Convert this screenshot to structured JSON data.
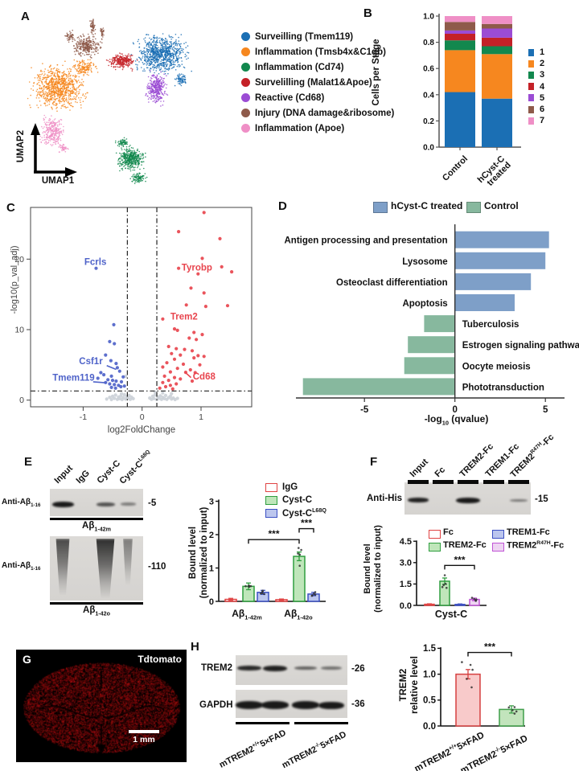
{
  "panelA": {
    "label": "A",
    "x_axis_label": "UMAP1",
    "y_axis_label": "UMAP2",
    "legend": [
      {
        "name": "Surveilling (Tmem119)",
        "color": "#1b6fb4"
      },
      {
        "name": "Inflammation (Tmsb4x&C1qb)",
        "color": "#f6871f"
      },
      {
        "name": "Inflammation (Cd74)",
        "color": "#12884e"
      },
      {
        "name": "Survelilling (Malat1&Apoe)",
        "color": "#c42127"
      },
      {
        "name": "Reactive (Cd68)",
        "color": "#9b4cd4"
      },
      {
        "name": "Injury (DNA damage&ribosome)",
        "color": "#8e5a4a"
      },
      {
        "name": "Inflammation (Apoe)",
        "color": "#ef8fc6"
      }
    ],
    "clusters": [
      {
        "name": "surveilling-tmem119",
        "color": "#1b6fb4",
        "blobs": [
          [
            175,
            52,
            40,
            30,
            850
          ],
          [
            200,
            84,
            9,
            11,
            70
          ]
        ]
      },
      {
        "name": "inflammation-tmsb4x-c1qb",
        "color": "#f6871f",
        "blobs": [
          [
            48,
            94,
            40,
            36,
            850
          ],
          [
            80,
            68,
            18,
            12,
            140
          ]
        ]
      },
      {
        "name": "inflammation-cd74",
        "color": "#12884e",
        "blobs": [
          [
            138,
            182,
            21,
            18,
            400
          ],
          [
            147,
            206,
            12,
            9,
            90
          ],
          [
            127,
            162,
            9,
            7,
            60
          ]
        ]
      },
      {
        "name": "surveilling-malat1-apoe",
        "color": "#c42127",
        "blobs": [
          [
            127,
            61,
            21,
            13,
            260
          ]
        ]
      },
      {
        "name": "reactive-cd68",
        "color": "#9b4cd4",
        "blobs": [
          [
            170,
            94,
            17,
            24,
            360
          ]
        ]
      },
      {
        "name": "injury-dna-damage",
        "color": "#8e5a4a",
        "blobs": [
          [
            82,
            42,
            24,
            17,
            300
          ],
          [
            90,
            17,
            4,
            13,
            60
          ],
          [
            102,
            26,
            3,
            9,
            35
          ],
          [
            62,
            30,
            10,
            8,
            50
          ]
        ]
      },
      {
        "name": "inflammation-apoe",
        "color": "#ef8fc6",
        "blobs": [
          [
            40,
            148,
            19,
            23,
            280
          ],
          [
            54,
            170,
            8,
            8,
            40
          ]
        ]
      }
    ]
  },
  "panelB": {
    "label": "B",
    "chart_data": {
      "type": "stacked-bar",
      "ylabel": "Cells per Stage",
      "ytick_values": [
        0,
        0.2,
        0.4,
        0.6,
        0.8,
        1.0
      ],
      "ytick_labels": [
        "0.0",
        "0.2",
        "0.4",
        "0.6",
        "0.8",
        "1.0"
      ],
      "categories": [
        "Control",
        "hCyst-C treated"
      ],
      "series": [
        {
          "name": "1",
          "color": "#1b6fb4",
          "values": [
            0.42,
            0.37
          ]
        },
        {
          "name": "2",
          "color": "#f6871f",
          "values": [
            0.32,
            0.34
          ]
        },
        {
          "name": "3",
          "color": "#12884e",
          "values": [
            0.075,
            0.06
          ]
        },
        {
          "name": "4",
          "color": "#c42127",
          "values": [
            0.05,
            0.065
          ]
        },
        {
          "name": "5",
          "color": "#9b4cd4",
          "values": [
            0.025,
            0.07
          ]
        },
        {
          "name": "6",
          "color": "#8e5a4a",
          "values": [
            0.065,
            0.035
          ]
        },
        {
          "name": "7",
          "color": "#ef8fc6",
          "values": [
            0.045,
            0.06
          ]
        }
      ]
    }
  },
  "panelC": {
    "label": "C",
    "chart_data": {
      "type": "scatter",
      "subtype": "volcano",
      "xlabel": "log2FoldChange",
      "ylabel": "-log10(p_val_adj)",
      "xtick_values": [
        -1,
        0,
        1
      ],
      "xtick_labels": [
        "-1",
        "0",
        "1"
      ],
      "ytick_values": [
        0,
        10,
        20
      ],
      "ytick_labels": [
        "0",
        "10",
        "20"
      ],
      "thresholds": {
        "x": [
          -0.25,
          0.25
        ],
        "y": 1.3
      },
      "colors": {
        "up": "#e8454e",
        "down": "#4f63c9",
        "ns": "#ccd1d8"
      },
      "up_points": [
        [
          1.05,
          26.6
        ],
        [
          0.62,
          23.9
        ],
        [
          1.32,
          22.9
        ],
        [
          1.02,
          20.1
        ],
        [
          0.62,
          18.7
        ],
        [
          1.35,
          18.9
        ],
        [
          1.52,
          18.2
        ],
        [
          0.95,
          17.9
        ],
        [
          0.83,
          15.9
        ],
        [
          1.05,
          15.2
        ],
        [
          0.75,
          13.5
        ],
        [
          1.08,
          13.3
        ],
        [
          1.45,
          13.4
        ],
        [
          0.35,
          11.5
        ],
        [
          0.55,
          10.1
        ],
        [
          0.6,
          9.9
        ],
        [
          0.88,
          9.6
        ],
        [
          1.02,
          9.3
        ],
        [
          0.8,
          8.8
        ],
        [
          0.92,
          8.6
        ],
        [
          0.45,
          7.6
        ],
        [
          0.58,
          7.3
        ],
        [
          0.72,
          7.2
        ],
        [
          0.85,
          7.0
        ],
        [
          0.5,
          6.6
        ],
        [
          0.65,
          6.4
        ],
        [
          0.95,
          6.3
        ],
        [
          1.05,
          6.2
        ],
        [
          0.88,
          6.0
        ],
        [
          0.55,
          5.8
        ],
        [
          0.42,
          5.3
        ],
        [
          0.7,
          5.1
        ],
        [
          0.98,
          5.0
        ],
        [
          0.35,
          4.7
        ],
        [
          0.6,
          4.5
        ],
        [
          0.82,
          4.3
        ],
        [
          0.48,
          4.0
        ],
        [
          0.9,
          3.9
        ],
        [
          0.74,
          3.95
        ],
        [
          0.38,
          3.4
        ],
        [
          0.55,
          3.2
        ],
        [
          0.65,
          3.0
        ],
        [
          0.45,
          2.8
        ],
        [
          0.85,
          2.7
        ],
        [
          0.35,
          2.5
        ],
        [
          0.58,
          2.3
        ],
        [
          0.48,
          2.1
        ],
        [
          0.4,
          1.9
        ],
        [
          0.3,
          1.7
        ],
        [
          0.52,
          1.6
        ]
      ],
      "down_points": [
        [
          -0.78,
          18.7
        ],
        [
          -0.48,
          10.7
        ],
        [
          -0.55,
          8.3
        ],
        [
          -0.47,
          8.0
        ],
        [
          -0.62,
          6.4
        ],
        [
          -0.53,
          5.6
        ],
        [
          -0.44,
          5.2
        ],
        [
          -0.42,
          4.6
        ],
        [
          -0.38,
          4.1
        ],
        [
          -0.7,
          3.9
        ],
        [
          -0.65,
          3.6
        ],
        [
          -0.52,
          3.4
        ],
        [
          -0.75,
          3.1
        ],
        [
          -0.58,
          2.9
        ],
        [
          -0.5,
          2.8
        ],
        [
          -0.44,
          2.7
        ],
        [
          -0.35,
          2.6
        ],
        [
          -0.62,
          2.5
        ],
        [
          -0.55,
          2.3
        ],
        [
          -0.47,
          2.2
        ],
        [
          -0.4,
          2.1
        ],
        [
          -0.36,
          1.9
        ],
        [
          -0.52,
          1.8
        ],
        [
          -0.45,
          1.7
        ],
        [
          -0.32,
          3.3
        ],
        [
          -0.3,
          2.0
        ]
      ],
      "ns_points": [
        [
          -0.6,
          0.15
        ],
        [
          -0.55,
          0.4
        ],
        [
          -0.52,
          0.08
        ],
        [
          -0.5,
          0.55
        ],
        [
          -0.47,
          0.25
        ],
        [
          -0.45,
          0.72
        ],
        [
          -0.42,
          0.1
        ],
        [
          -0.4,
          0.45
        ],
        [
          -0.38,
          0.2
        ],
        [
          -0.36,
          0.6
        ],
        [
          -0.34,
          0.08
        ],
        [
          -0.32,
          0.35
        ],
        [
          -0.3,
          0.78
        ],
        [
          -0.28,
          0.15
        ],
        [
          -0.26,
          0.5
        ],
        [
          -0.24,
          0.28
        ],
        [
          -0.22,
          0.65
        ],
        [
          -0.2,
          0.1
        ],
        [
          -0.18,
          0.42
        ],
        [
          -0.15,
          0.2
        ],
        [
          -0.35,
          0.92
        ],
        [
          -0.28,
          3.4
        ],
        [
          0.13,
          0.3
        ],
        [
          0.16,
          0.1
        ],
        [
          0.18,
          0.55
        ],
        [
          0.2,
          0.22
        ],
        [
          0.22,
          0.72
        ],
        [
          0.25,
          0.08
        ],
        [
          0.27,
          0.45
        ],
        [
          0.29,
          0.25
        ],
        [
          0.31,
          0.62
        ],
        [
          0.33,
          0.1
        ],
        [
          0.35,
          0.4
        ],
        [
          0.38,
          0.2
        ],
        [
          0.4,
          0.66
        ],
        [
          0.42,
          0.1
        ],
        [
          0.45,
          0.35
        ],
        [
          0.48,
          0.56
        ],
        [
          0.5,
          0.15
        ],
        [
          0.53,
          0.3
        ],
        [
          0.56,
          0.08
        ],
        [
          0.35,
          1.02
        ],
        [
          0.5,
          0.92
        ],
        [
          0.6,
          0.25
        ],
        [
          0.22,
          1.12
        ]
      ],
      "gene_labels": [
        {
          "gene": "Fcrls",
          "x": -0.98,
          "y": 19.2,
          "group": "down"
        },
        {
          "gene": "Tyrobp",
          "x": 0.67,
          "y": 18.4,
          "group": "up"
        },
        {
          "gene": "Trem2",
          "x": 0.48,
          "y": 11.4,
          "group": "up"
        },
        {
          "gene": "Csf1r",
          "x": -1.07,
          "y": 5.1,
          "group": "down",
          "leader": [
            -0.6,
            4.9,
            -0.44,
            4.35
          ]
        },
        {
          "gene": "Tmem119",
          "x": -1.52,
          "y": 2.75,
          "group": "down",
          "leader": [
            -0.83,
            2.6,
            -0.6,
            2.45
          ]
        },
        {
          "gene": "Cd68",
          "x": 0.86,
          "y": 2.95,
          "group": "up",
          "leader": [
            0.83,
            3.2,
            0.73,
            3.95
          ]
        }
      ]
    }
  },
  "panelD": {
    "label": "D",
    "chart_data": {
      "type": "bar",
      "subtype": "horizontal-diverging",
      "xlabel": "-log_{10} (qvalue)",
      "xtick_values": [
        -5,
        0,
        5
      ],
      "xtick_labels": [
        "-5",
        "0",
        "5"
      ],
      "xlim": [
        -9.2,
        6.2
      ],
      "legend": [
        {
          "name": "hCyst-C treated",
          "color": "#7e9fc8"
        },
        {
          "name": "Control",
          "color": "#87b89e"
        }
      ],
      "bars": [
        {
          "label": "Antigen processing and presentation",
          "value": 5.2,
          "group": "hCyst-C treated"
        },
        {
          "label": "Lysosome",
          "value": 5.0,
          "group": "hCyst-C treated"
        },
        {
          "label": "Osteoclast differentiation",
          "value": 4.2,
          "group": "hCyst-C treated"
        },
        {
          "label": "Apoptosis",
          "value": 3.3,
          "group": "hCyst-C treated"
        },
        {
          "label": "Tuberculosis",
          "value": -1.7,
          "group": "Control"
        },
        {
          "label": "Estrogen signaling pathway",
          "value": -2.6,
          "group": "Control"
        },
        {
          "label": "Oocyte meiosis",
          "value": -2.8,
          "group": "Control"
        },
        {
          "label": "Phototransduction",
          "value": -8.4,
          "group": "Control"
        }
      ]
    }
  },
  "panelE": {
    "label": "E",
    "lane_labels": [
      "Input",
      "IgG",
      "Cyst-C",
      "Cyst-C^{L68Q}"
    ],
    "blots": [
      {
        "antibody": "Anti-Aβ_{1-16}",
        "marker": "-5",
        "caption": "Aβ_{1-42m}",
        "band_type": "band",
        "lane_intensities": [
          1,
          0,
          0.6,
          0.3
        ]
      },
      {
        "antibody": "Anti-Aβ_{1-16}",
        "marker": "-110",
        "caption": "Aβ_{1-42o}",
        "band_type": "smear",
        "lane_intensities": [
          0.85,
          0,
          1,
          0.55
        ]
      }
    ],
    "chart_data": {
      "type": "bar",
      "subtype": "grouped",
      "ylabel": "Bound level\n(normalized to input)",
      "ytick_values": [
        0,
        1,
        2,
        3
      ],
      "ytick_labels": [
        "0",
        "1",
        "2",
        "3"
      ],
      "groups": [
        "Aβ_{1-42m}",
        "Aβ_{1-42o}"
      ],
      "series": [
        {
          "name": "IgG",
          "fill": "#ffffff",
          "stroke": "#e04343",
          "values": [
            0.06,
            0.05
          ],
          "errors": [
            0.03,
            0.02
          ]
        },
        {
          "name": "Cyst-C",
          "fill": "#bfe6ba",
          "stroke": "#2f9e3f",
          "values": [
            0.45,
            1.35
          ],
          "errors": [
            0.1,
            0.13
          ]
        },
        {
          "name": "Cyst-C^{L68Q}",
          "fill": "#bcc6ee",
          "stroke": "#3c50c3",
          "values": [
            0.27,
            0.22
          ],
          "errors": [
            0.06,
            0.05
          ]
        }
      ],
      "significance": [
        {
          "from": "Cyst-C / Aβ1-42m",
          "to": "Cyst-C / Aβ1-42o",
          "label": "***"
        },
        {
          "from": "Cyst-C / Aβ1-42o",
          "to": "Cyst-C L68Q / Aβ1-42o",
          "label": "***"
        }
      ]
    }
  },
  "panelF": {
    "label": "F",
    "lane_labels": [
      "Input",
      "Fc",
      "TREM2-Fc",
      "TREM1-Fc",
      "TREM2^{R47H}-Fc"
    ],
    "blot": {
      "antibody": "Anti-His",
      "marker": "-15",
      "lane_intensities": [
        0.95,
        0,
        1,
        0,
        0.35
      ]
    },
    "chart_data": {
      "type": "bar",
      "ylabel": "Bound level\n(normalized to input)",
      "ytick_values": [
        0,
        1.5,
        3,
        4.5
      ],
      "ytick_labels": [
        "0.0",
        "1.5",
        "3.0",
        "4.5"
      ],
      "categories": [
        "Cyst-C"
      ],
      "series": [
        {
          "name": "Fc",
          "fill": "#ffffff",
          "stroke": "#e04343",
          "value": 0.08,
          "error": 0.03
        },
        {
          "name": "TREM2-Fc",
          "fill": "#bfe6ba",
          "stroke": "#2f9e3f",
          "value": 1.7,
          "error": 0.22
        },
        {
          "name": "TREM1-Fc",
          "fill": "#bcc6ee",
          "stroke": "#3c50c3",
          "value": 0.07,
          "error": 0.03
        },
        {
          "name": "TREM2^{R47H}-Fc",
          "fill": "#eed4f2",
          "stroke": "#c155d6",
          "value": 0.42,
          "error": 0.09
        }
      ],
      "significance": [
        {
          "from": "TREM2-Fc",
          "to": "TREM2 R47H-Fc",
          "label": "***"
        }
      ]
    }
  },
  "panelG": {
    "label": "G",
    "title": "Tdtomato",
    "scale_label": "1 mm",
    "background": "#000000",
    "tissue_color": "#a01414"
  },
  "panelH": {
    "label": "H",
    "blots": [
      {
        "name": "TREM2",
        "marker": "-26",
        "lane_intensities": [
          0.9,
          0.95,
          0.5,
          0.4
        ]
      },
      {
        "name": "GAPDH",
        "marker": "-36",
        "lane_intensities": [
          1,
          1,
          1,
          1
        ]
      }
    ],
    "group_labels": [
      "mTREM2^{+/+}5×FAD",
      "mTREM2^{-/-}5×FAD"
    ],
    "chart_data": {
      "type": "bar",
      "ylabel": "TREM2\nrelative level",
      "ytick_values": [
        0,
        0.5,
        1,
        1.5
      ],
      "ytick_labels": [
        "0.0",
        "0.5",
        "1.0",
        "1.5"
      ],
      "bars": [
        {
          "label": "mTREM2^{+/+}5×FAD",
          "fill": "#f8caca",
          "stroke": "#d54040",
          "value": 1.0,
          "error": 0.09
        },
        {
          "label": "mTREM2^{-/-}5×FAD",
          "fill": "#c2e4bc",
          "stroke": "#3f9e4a",
          "value": 0.32,
          "error": 0.07
        }
      ],
      "significance": [
        {
          "from": "mTREM2+/+5×FAD",
          "to": "mTREM2-/-5×FAD",
          "label": "***"
        }
      ]
    }
  }
}
